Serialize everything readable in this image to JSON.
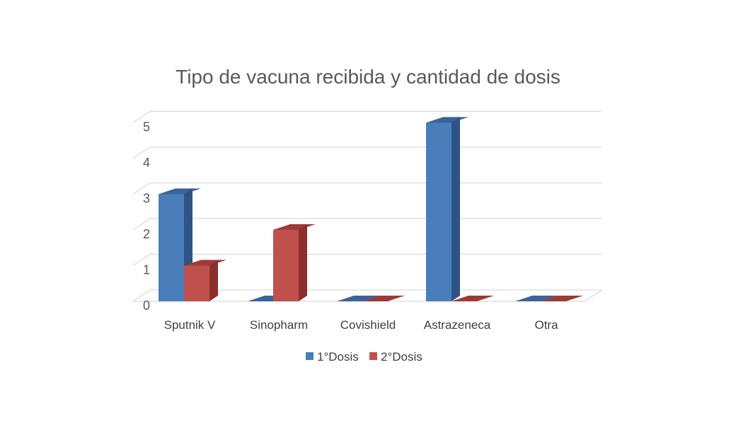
{
  "chart_data": {
    "type": "bar",
    "title": "Tipo de vacuna recibida y cantidad de dosis",
    "xlabel": "",
    "ylabel": "",
    "categories": [
      "Sputnik V",
      "Sinopharm",
      "Covishield",
      "Astrazeneca",
      "Otra"
    ],
    "series": [
      {
        "name": "1°Dosis",
        "values": [
          3,
          0,
          0,
          5,
          0
        ],
        "color": "#4a7ebb",
        "side_color": "#2f5382",
        "top_color": "#3a6399"
      },
      {
        "name": "2°Dosis",
        "values": [
          1,
          2,
          0,
          0,
          0
        ],
        "color": "#c0504d",
        "side_color": "#8a2f2c",
        "top_color": "#9e3a37"
      }
    ],
    "ylim": [
      0,
      5
    ],
    "y_ticks": [
      "0",
      "1",
      "2",
      "3",
      "4",
      "5"
    ],
    "grid": true,
    "legend_position": "bottom",
    "style": "3d-clustered-column"
  }
}
